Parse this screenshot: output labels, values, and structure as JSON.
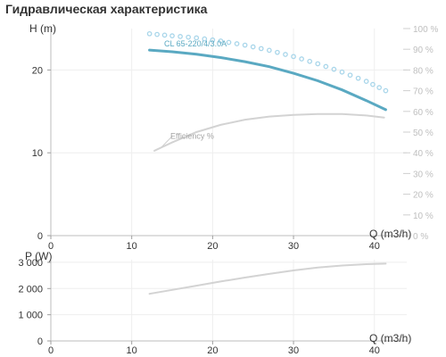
{
  "title": "Гидравлическая характеристика",
  "chart_data": [
    {
      "type": "line",
      "xlabel": "Q (m3/h)",
      "ylabel": "H (m)",
      "y2label_unit": "%",
      "xlim": [
        0,
        44
      ],
      "ylim": [
        0,
        25
      ],
      "y2lim": [
        0,
        100
      ],
      "xticks": [
        0,
        10,
        20,
        30,
        40
      ],
      "yticks": [
        0,
        10,
        20
      ],
      "y2ticks": [
        0,
        10,
        20,
        30,
        40,
        50,
        60,
        70,
        80,
        90,
        100
      ],
      "grid": true,
      "series": [
        {
          "name": "CL 65-220/4/3.0A",
          "axis": "left",
          "style": "solid",
          "color": "#5aa9c2",
          "x": [
            12.2,
            15,
            18,
            21,
            24,
            27,
            30,
            33,
            36,
            39,
            41.4
          ],
          "y": [
            22.4,
            22.2,
            21.9,
            21.5,
            21.0,
            20.4,
            19.6,
            18.7,
            17.6,
            16.3,
            15.2
          ]
        },
        {
          "name": "",
          "axis": "right",
          "style": "dotted",
          "color": "#a9d6ea",
          "x": [
            12.2,
            15,
            18,
            21,
            24,
            27,
            30,
            33,
            36,
            39,
            41.4
          ],
          "y": [
            97.5,
            96.5,
            95.5,
            94.0,
            92.0,
            89.5,
            86.5,
            83.0,
            79.0,
            74.5,
            70.0
          ]
        },
        {
          "name": "Efficiency %",
          "axis": "right",
          "style": "solid",
          "color": "#d3d3d3",
          "x": [
            12.8,
            15,
            18,
            21,
            24,
            27,
            30,
            33,
            36,
            39,
            41.2
          ],
          "y": [
            41.0,
            45.0,
            50.0,
            53.5,
            56.0,
            57.5,
            58.3,
            58.7,
            58.7,
            58.0,
            57.0
          ]
        }
      ]
    },
    {
      "type": "line",
      "xlabel": "Q (m3/h)",
      "ylabel": "P (W)",
      "xlim": [
        0,
        44
      ],
      "ylim": [
        0,
        3100
      ],
      "xticks": [
        0,
        10,
        20,
        30,
        40
      ],
      "yticks": [
        0,
        1000,
        2000,
        3000
      ],
      "ytick_labels": [
        "0",
        "1 000",
        "2 000",
        "3 000"
      ],
      "grid": true,
      "series": [
        {
          "name": "",
          "color": "#d3d3d3",
          "x": [
            12.2,
            15,
            18,
            21,
            24,
            27,
            30,
            33,
            36,
            39,
            41.4
          ],
          "y": [
            1800,
            1950,
            2110,
            2270,
            2420,
            2560,
            2690,
            2800,
            2880,
            2930,
            2950
          ]
        }
      ]
    }
  ]
}
